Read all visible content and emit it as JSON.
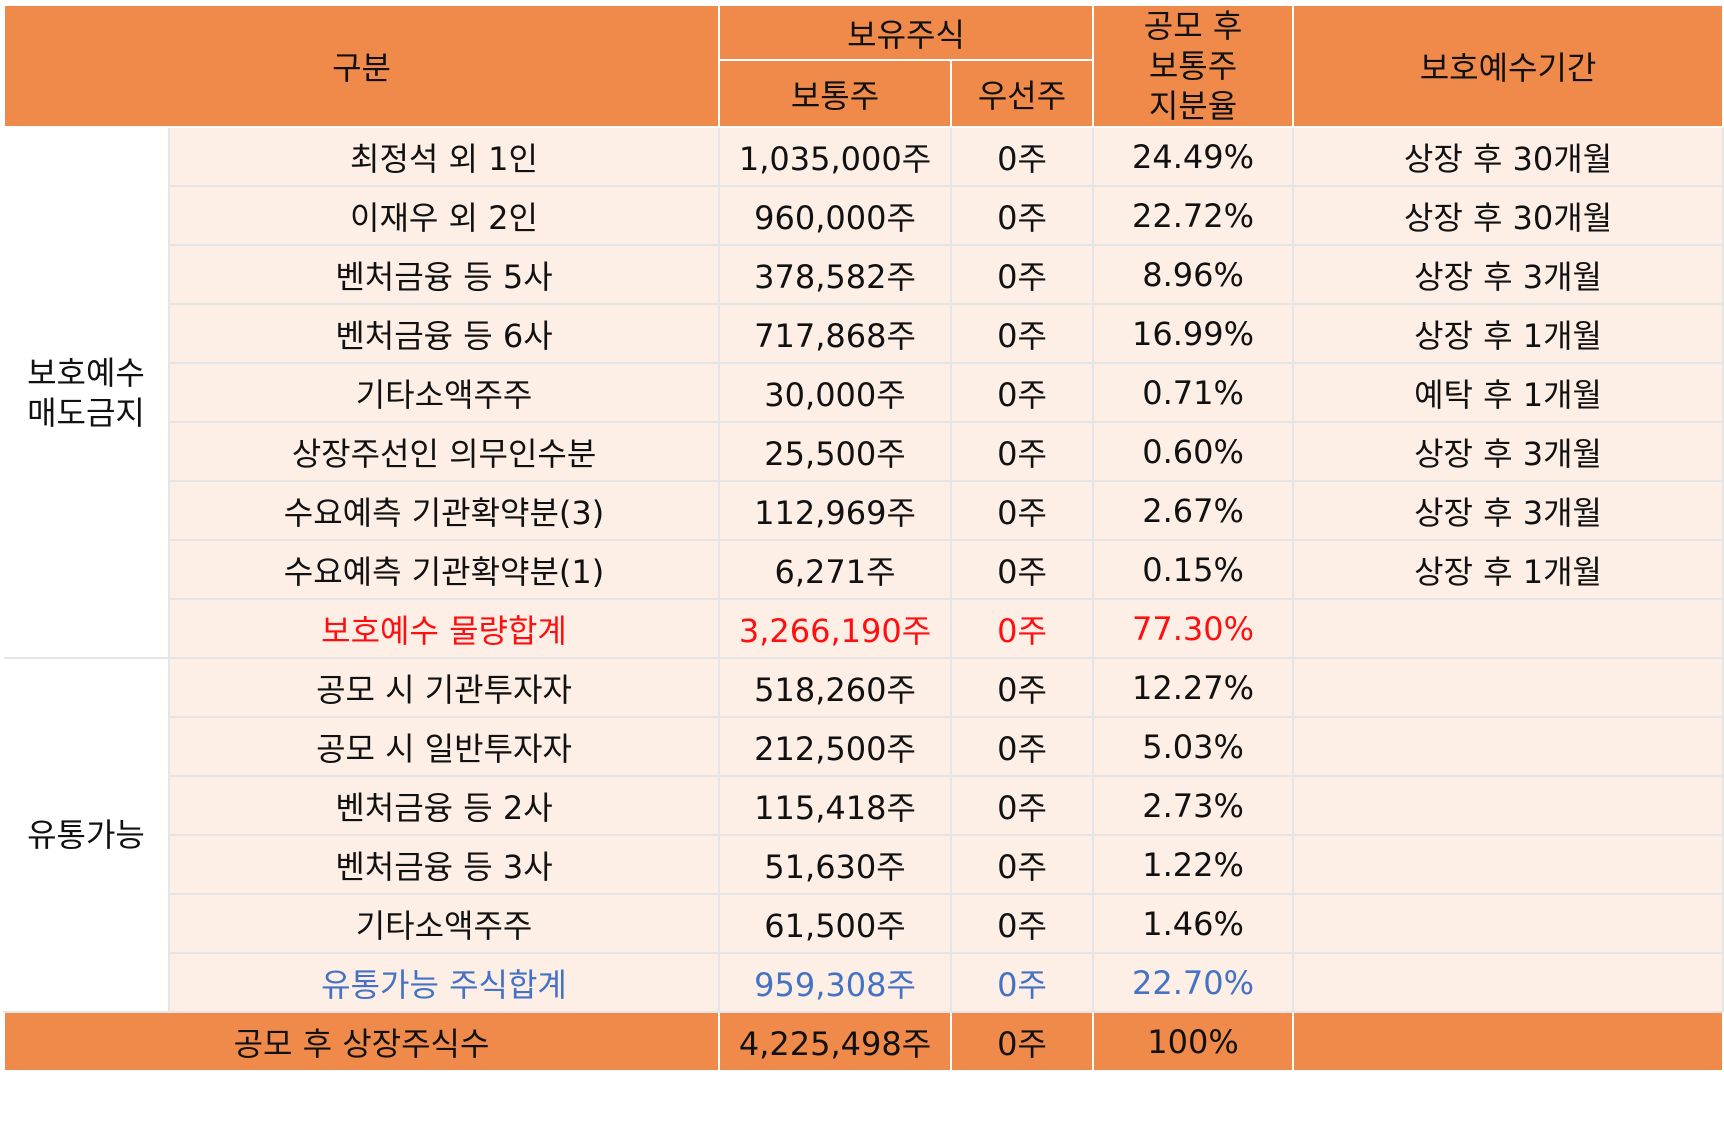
{
  "header": {
    "category": "구분",
    "holdings": "보유주식",
    "common": "보통주",
    "preferred": "우선주",
    "ratio_lines": [
      "공모 후",
      "보통주",
      "지분율"
    ],
    "lockup_period": "보호예수기간"
  },
  "groups": {
    "locked": [
      "보호예수",
      "매도금지"
    ],
    "tradable": "유통가능"
  },
  "locked_rows": [
    {
      "name": "최정석 외 1인",
      "common": "1,035,000주",
      "preferred": "0주",
      "ratio": "24.49%",
      "period": "상장 후 30개월"
    },
    {
      "name": "이재우 외 2인",
      "common": "960,000주",
      "preferred": "0주",
      "ratio": "22.72%",
      "period": "상장 후 30개월"
    },
    {
      "name": "벤처금융 등 5사",
      "common": "378,582주",
      "preferred": "0주",
      "ratio": "8.96%",
      "period": "상장 후 3개월"
    },
    {
      "name": "벤처금융 등 6사",
      "common": "717,868주",
      "preferred": "0주",
      "ratio": "16.99%",
      "period": "상장 후 1개월"
    },
    {
      "name": "기타소액주주",
      "common": "30,000주",
      "preferred": "0주",
      "ratio": "0.71%",
      "period": "예탁 후 1개월"
    },
    {
      "name": "상장주선인 의무인수분",
      "common": "25,500주",
      "preferred": "0주",
      "ratio": "0.60%",
      "period": "상장 후 3개월"
    },
    {
      "name": "수요예측 기관확약분(3)",
      "common": "112,969주",
      "preferred": "0주",
      "ratio": "2.67%",
      "period": "상장 후 3개월"
    },
    {
      "name": "수요예측 기관확약분(1)",
      "common": "6,271주",
      "preferred": "0주",
      "ratio": "0.15%",
      "period": "상장 후 1개월"
    }
  ],
  "locked_total": {
    "name": "보호예수 물량합계",
    "common": "3,266,190주",
    "preferred": "0주",
    "ratio": "77.30%",
    "color": "#ff1010"
  },
  "tradable_rows": [
    {
      "name": "공모 시 기관투자자",
      "common": "518,260주",
      "preferred": "0주",
      "ratio": "12.27%"
    },
    {
      "name": "공모 시 일반투자자",
      "common": "212,500주",
      "preferred": "0주",
      "ratio": "5.03%"
    },
    {
      "name": "벤처금융 등 2사",
      "common": "115,418주",
      "preferred": "0주",
      "ratio": "2.73%"
    },
    {
      "name": "벤처금융 등 3사",
      "common": "51,630주",
      "preferred": "0주",
      "ratio": "1.22%"
    },
    {
      "name": "기타소액주주",
      "common": "61,500주",
      "preferred": "0주",
      "ratio": "1.46%"
    }
  ],
  "tradable_total": {
    "name": "유통가능 주식합계",
    "common": "959,308주",
    "preferred": "0주",
    "ratio": "22.70%",
    "color": "#4472c4"
  },
  "grand_total": {
    "name": "공모 후 상장주식수",
    "common": "4,225,498주",
    "preferred": "0주",
    "ratio": "100%"
  },
  "colors": {
    "header_bg": "#f08a4b",
    "row_bg": "#fdeee6"
  }
}
